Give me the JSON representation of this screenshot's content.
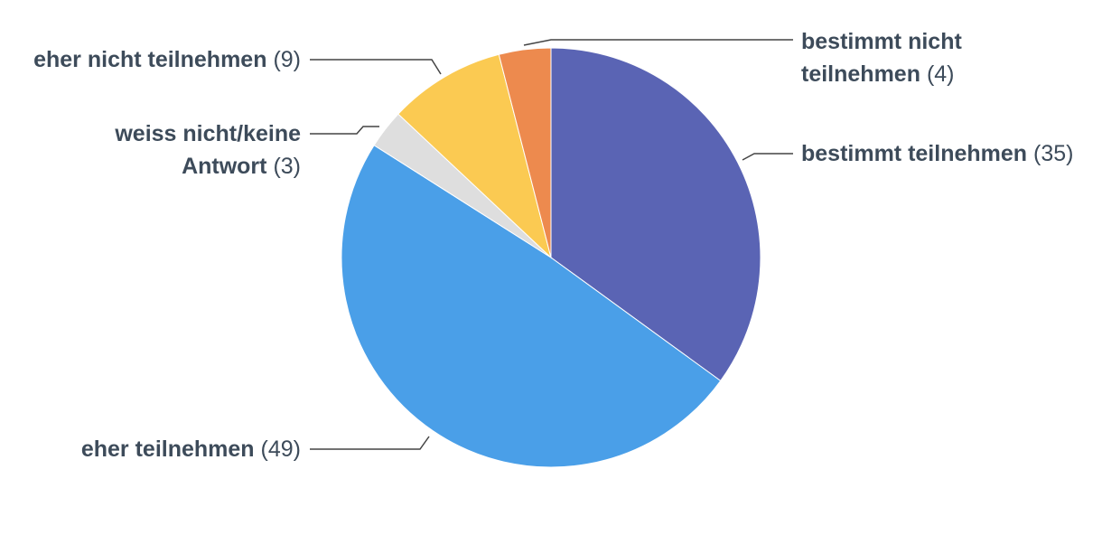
{
  "chart_data": {
    "type": "pie",
    "categories": [
      "bestimmt teilnehmen",
      "eher teilnehmen",
      "weiss nicht/keine Antwort",
      "eher nicht teilnehmen",
      "bestimmt nicht teilnehmen"
    ],
    "values": [
      35,
      49,
      3,
      9,
      4
    ],
    "value_labels": [
      "(35)",
      "(49)",
      "(3)",
      "(9)",
      "(4)"
    ],
    "colors": [
      "#5a64b4",
      "#4a9fe8",
      "#dedede",
      "#fbca52",
      "#ed8a4e"
    ]
  }
}
